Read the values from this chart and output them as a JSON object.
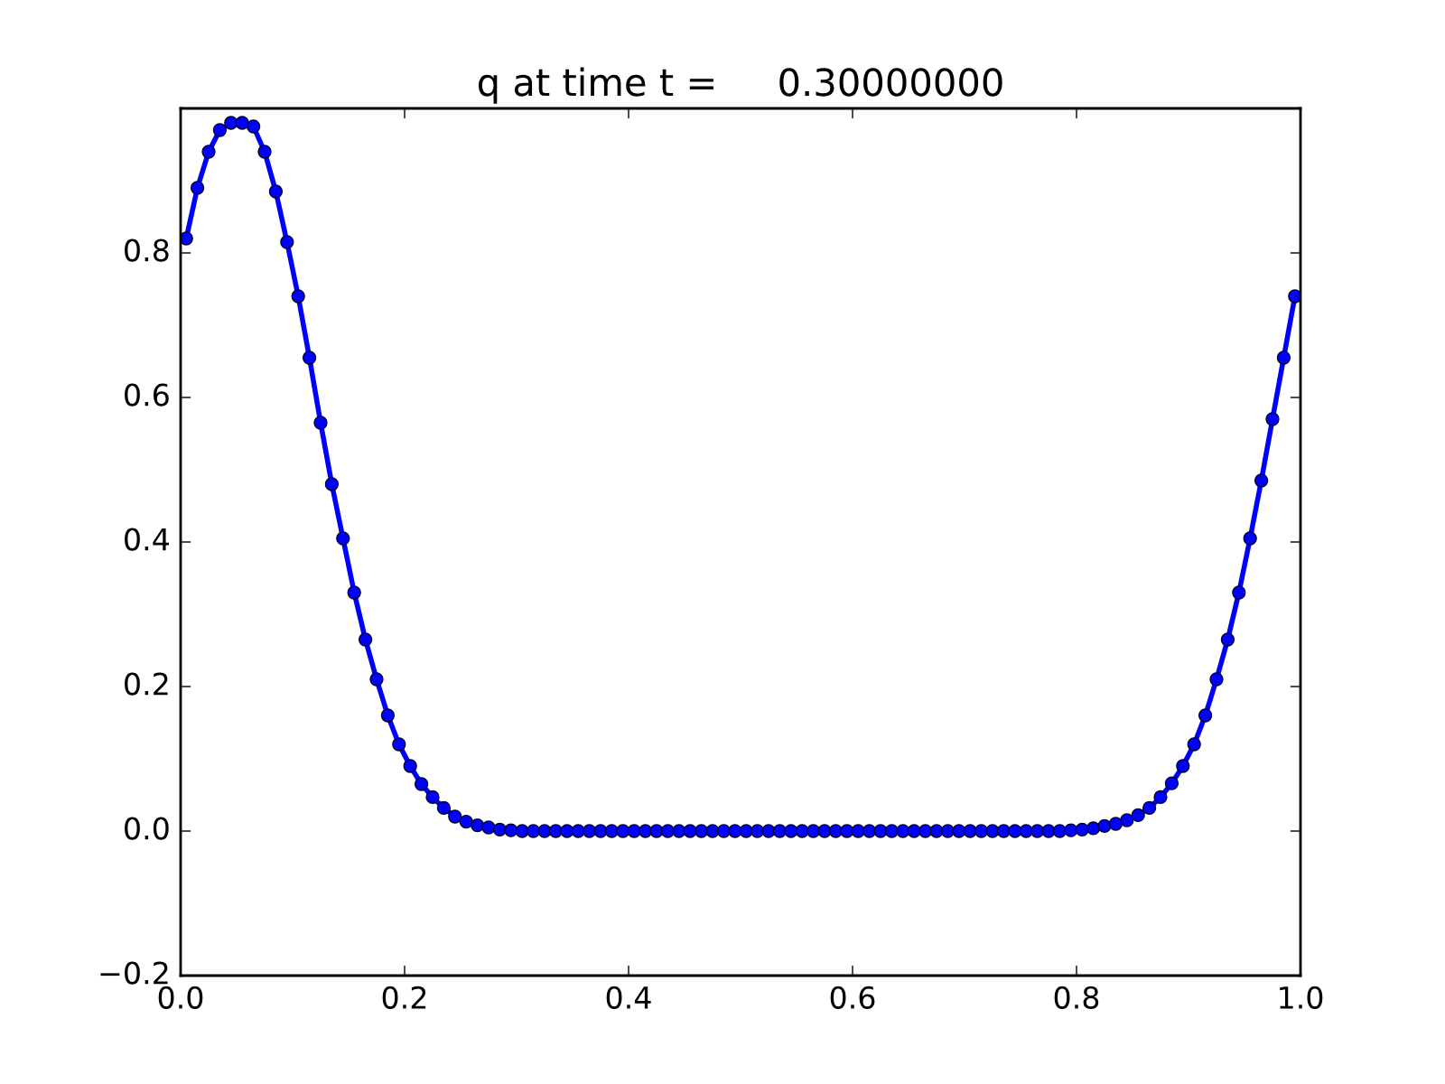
{
  "chart_data": {
    "type": "line",
    "title": "q at time t =     0.30000000",
    "x": [
      0.005,
      0.015,
      0.025,
      0.035,
      0.045,
      0.055,
      0.065,
      0.075,
      0.085,
      0.095,
      0.105,
      0.115,
      0.125,
      0.135,
      0.145,
      0.155,
      0.165,
      0.175,
      0.185,
      0.195,
      0.205,
      0.215,
      0.225,
      0.235,
      0.245,
      0.255,
      0.265,
      0.275,
      0.285,
      0.295,
      0.305,
      0.315,
      0.325,
      0.335,
      0.345,
      0.355,
      0.365,
      0.375,
      0.385,
      0.395,
      0.405,
      0.415,
      0.425,
      0.435,
      0.445,
      0.455,
      0.465,
      0.475,
      0.485,
      0.495,
      0.505,
      0.515,
      0.525,
      0.535,
      0.545,
      0.555,
      0.565,
      0.575,
      0.585,
      0.595,
      0.605,
      0.615,
      0.625,
      0.635,
      0.645,
      0.655,
      0.665,
      0.675,
      0.685,
      0.695,
      0.705,
      0.715,
      0.725,
      0.735,
      0.745,
      0.755,
      0.765,
      0.775,
      0.785,
      0.795,
      0.805,
      0.815,
      0.825,
      0.835,
      0.845,
      0.855,
      0.865,
      0.875,
      0.885,
      0.895,
      0.905,
      0.915,
      0.925,
      0.935,
      0.945,
      0.955,
      0.965,
      0.975,
      0.985,
      0.995
    ],
    "series": [
      {
        "color": "#0000ff",
        "values": [
          0.82,
          0.89,
          0.94,
          0.97,
          0.98,
          0.98,
          0.975,
          0.94,
          0.885,
          0.815,
          0.74,
          0.655,
          0.565,
          0.48,
          0.405,
          0.33,
          0.265,
          0.21,
          0.16,
          0.12,
          0.09,
          0.065,
          0.047,
          0.032,
          0.02,
          0.013,
          0.008,
          0.005,
          0.002,
          0.001,
          0,
          0,
          0,
          0,
          0,
          0,
          0,
          0,
          0,
          0,
          0,
          0,
          0,
          0,
          0,
          0,
          0,
          0,
          0,
          0,
          0,
          0,
          0,
          0,
          0,
          0,
          0,
          0,
          0,
          0,
          0,
          0,
          0,
          0,
          0,
          0,
          0,
          0,
          0,
          0,
          0,
          0,
          0,
          0,
          0,
          0,
          0,
          0,
          0,
          0.001,
          0.002,
          0.004,
          0.007,
          0.01,
          0.015,
          0.022,
          0.032,
          0.047,
          0.066,
          0.09,
          0.12,
          0.16,
          0.21,
          0.265,
          0.33,
          0.405,
          0.485,
          0.57,
          0.655,
          0.74
        ]
      }
    ],
    "xlim": [
      0.0,
      1.0
    ],
    "xticks": [
      {
        "value": 0,
        "label": "0.0"
      },
      0.2,
      0.4,
      0.6,
      0.8,
      {
        "value": 1,
        "label": "1.0"
      }
    ],
    "ylim": [
      -0.2,
      1.0
    ],
    "yticks": [
      {
        "value": -0.2,
        "label": "−0.2"
      },
      {
        "value": 0,
        "label": "0.0"
      },
      0.2,
      0.4,
      0.6,
      0.8
    ],
    "marker": "circle",
    "line_style": "solid",
    "grid": false,
    "legend": false
  }
}
